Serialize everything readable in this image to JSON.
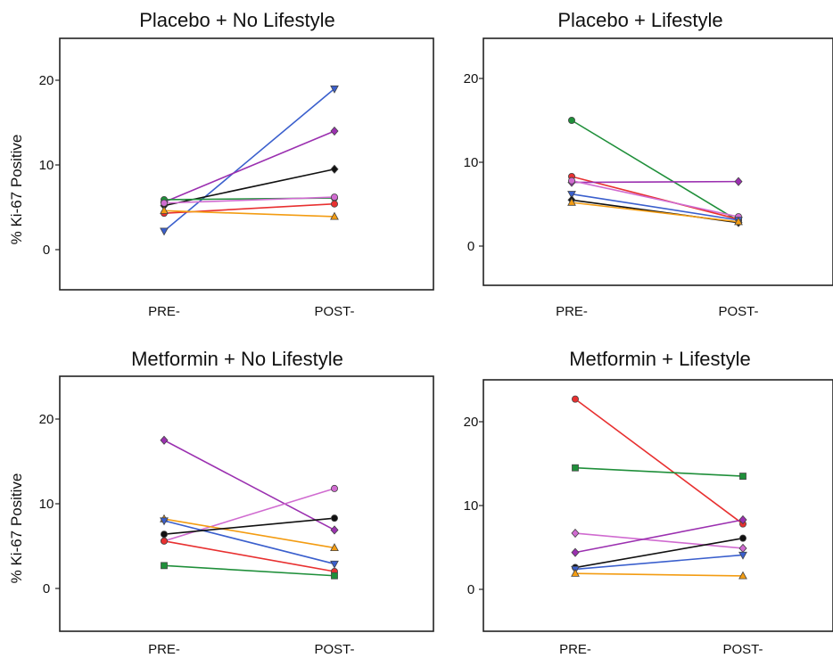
{
  "chart_data": [
    {
      "type": "line",
      "title": "Placebo + No Lifestyle",
      "ylabel": "% Ki-67 Positive",
      "categories": [
        "PRE-",
        "POST-"
      ],
      "yticks": [
        0,
        10,
        20
      ],
      "ylim": [
        -5,
        25
      ],
      "series": [
        {
          "color": "#3a5fcd",
          "marker": "triangle-down",
          "values": [
            2.2,
            19.0
          ]
        },
        {
          "color": "#9b30b0",
          "marker": "diamond",
          "values": [
            5.6,
            14.0
          ]
        },
        {
          "color": "#111111",
          "marker": "diamond",
          "values": [
            5.2,
            9.5
          ]
        },
        {
          "color": "#1f8f3a",
          "marker": "circle",
          "values": [
            5.9,
            6.1
          ]
        },
        {
          "color": "#d06bd0",
          "marker": "circle",
          "values": [
            5.5,
            6.2
          ]
        },
        {
          "color": "#e83030",
          "marker": "circle",
          "values": [
            4.3,
            5.4
          ]
        },
        {
          "color": "#f39c12",
          "marker": "triangle-up",
          "values": [
            4.6,
            3.9
          ]
        }
      ]
    },
    {
      "type": "line",
      "title": "Placebo + Lifestyle",
      "ylabel": "",
      "categories": [
        "PRE-",
        "POST-"
      ],
      "yticks": [
        0,
        10,
        20
      ],
      "ylim": [
        -5,
        25
      ],
      "series": [
        {
          "color": "#1f8f3a",
          "marker": "circle",
          "values": [
            15.0,
            3.0
          ]
        },
        {
          "color": "#e83030",
          "marker": "circle",
          "values": [
            8.3,
            3.2
          ]
        },
        {
          "color": "#9b30b0",
          "marker": "diamond",
          "values": [
            7.6,
            7.7
          ]
        },
        {
          "color": "#d06bd0",
          "marker": "circle",
          "values": [
            7.8,
            3.5
          ]
        },
        {
          "color": "#3a5fcd",
          "marker": "triangle-down",
          "values": [
            6.2,
            3.1
          ]
        },
        {
          "color": "#111111",
          "marker": "diamond",
          "values": [
            5.5,
            2.8
          ]
        },
        {
          "color": "#f39c12",
          "marker": "triangle-up",
          "values": [
            5.2,
            2.9
          ]
        }
      ]
    },
    {
      "type": "line",
      "title": "Metformin + No Lifestyle",
      "ylabel": "% Ki-67 Positive",
      "categories": [
        "PRE-",
        "POST-"
      ],
      "yticks": [
        0,
        10,
        20
      ],
      "ylim": [
        -5,
        25
      ],
      "series": [
        {
          "color": "#9b30b0",
          "marker": "diamond",
          "values": [
            17.5,
            6.9
          ]
        },
        {
          "color": "#d06bd0",
          "marker": "circle",
          "values": [
            5.6,
            11.8
          ]
        },
        {
          "color": "#f39c12",
          "marker": "triangle-up",
          "values": [
            8.2,
            4.8
          ]
        },
        {
          "color": "#3a5fcd",
          "marker": "triangle-down",
          "values": [
            8.0,
            2.9
          ]
        },
        {
          "color": "#111111",
          "marker": "circle",
          "values": [
            6.4,
            8.3
          ]
        },
        {
          "color": "#e83030",
          "marker": "circle",
          "values": [
            5.6,
            2.0
          ]
        },
        {
          "color": "#1f8f3a",
          "marker": "square",
          "values": [
            2.7,
            1.5
          ]
        }
      ]
    },
    {
      "type": "line",
      "title": "Metformin + Lifestyle",
      "ylabel": "",
      "categories": [
        "PRE-",
        "POST-"
      ],
      "yticks": [
        0,
        10,
        20
      ],
      "ylim": [
        -5,
        25
      ],
      "series": [
        {
          "color": "#e83030",
          "marker": "circle",
          "values": [
            22.7,
            7.8
          ]
        },
        {
          "color": "#1f8f3a",
          "marker": "square",
          "values": [
            14.5,
            13.5
          ]
        },
        {
          "color": "#d06bd0",
          "marker": "diamond",
          "values": [
            6.7,
            4.9
          ]
        },
        {
          "color": "#9b30b0",
          "marker": "diamond",
          "values": [
            4.4,
            8.3
          ]
        },
        {
          "color": "#111111",
          "marker": "circle",
          "values": [
            2.6,
            6.1
          ]
        },
        {
          "color": "#3a5fcd",
          "marker": "triangle-down",
          "values": [
            2.4,
            4.1
          ]
        },
        {
          "color": "#f39c12",
          "marker": "triangle-up",
          "values": [
            1.9,
            1.6
          ]
        }
      ]
    }
  ]
}
